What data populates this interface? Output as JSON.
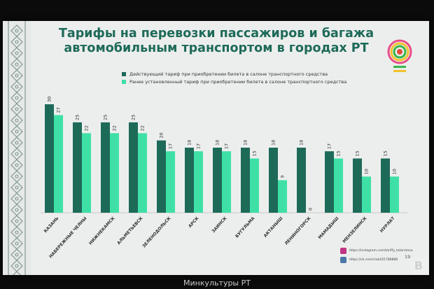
{
  "caption": "Минкультуры РТ",
  "page_number": "19",
  "footer": {
    "instagram": "https://instagram.com/tariffy_tatarstana",
    "vk": "https://vk.com/club161788888"
  },
  "colors": {
    "current": "#1e6a59",
    "previous": "#3ee0a6",
    "instagram": "#c13584",
    "vk": "#4a76a8"
  },
  "chart_data": {
    "type": "bar",
    "title": "Тарифы на перевозки пассажиров и багажа автомобильным транспортом в городах РТ",
    "categories": [
      "КАЗАНЬ",
      "НАБЕРЕЖНЫЕ ЧЕЛНЫ",
      "НИЖНЕКАМСК",
      "АЛЬМЕТЬЕВСК",
      "ЗЕЛЕНОДОЛЬСК",
      "АРСК",
      "ЗАИНСК",
      "БУГУЛЬМА",
      "АКТАНЫШ",
      "ЛЕНИНОГОРСК",
      "МАМАДЫШ",
      "МЕНЗЕЛИНСК",
      "НУРЛАТ"
    ],
    "series": [
      {
        "name": "Действующий тариф при приобретении билета в салоне транспортного средства",
        "values": [
          30,
          25,
          25,
          25,
          20,
          18,
          18,
          18,
          18,
          18,
          17,
          15,
          15
        ]
      },
      {
        "name": "Ранее установленный тариф при приобретении билета в салоне транспортного средства",
        "values": [
          27,
          22,
          22,
          22,
          17,
          17,
          17,
          15,
          9,
          0,
          15,
          10,
          10
        ]
      }
    ],
    "ylim": [
      0,
      30
    ],
    "grid": false,
    "legend": "top-left",
    "data_labels": true
  }
}
